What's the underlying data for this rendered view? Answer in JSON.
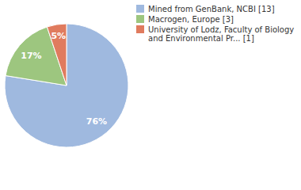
{
  "chart_data": {
    "type": "pie",
    "categories": [
      "Mined from GenBank, NCBI [13]",
      "Macrogen, Europe [3]",
      "University of Lodz, Faculty of Biology and Environmental Pr... [1]"
    ],
    "values": [
      76,
      17,
      5
    ],
    "value_labels": [
      "76%",
      "17%",
      "5%"
    ],
    "colors": [
      "#9fb9df",
      "#9dc67f",
      "#e07b5e"
    ],
    "data_labels": true,
    "legend": "right"
  }
}
